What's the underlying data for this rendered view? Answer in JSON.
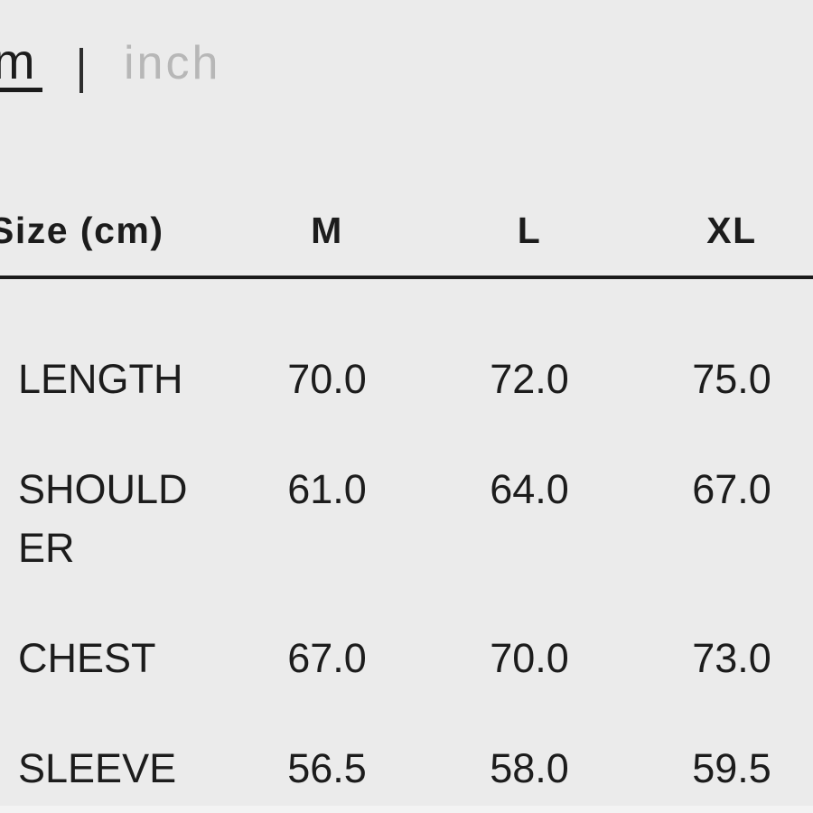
{
  "unit_toggle": {
    "cm_label": "cm",
    "inch_label": "inch",
    "active_unit": "cm"
  },
  "table": {
    "header": [
      "Size (cm)",
      "M",
      "L",
      "XL"
    ],
    "rows": [
      {
        "label": "LENGTH",
        "values": [
          "70.0",
          "72.0",
          "75.0"
        ]
      },
      {
        "label": "SHOULDER",
        "values": [
          "61.0",
          "64.0",
          "67.0"
        ]
      },
      {
        "label": "CHEST",
        "values": [
          "67.0",
          "70.0",
          "73.0"
        ]
      },
      {
        "label": "SLEEVE",
        "values": [
          "56.5",
          "58.0",
          "59.5"
        ]
      }
    ]
  },
  "colors": {
    "background": "#ebebeb",
    "text": "#1c1c1c",
    "inactive": "#b7b7b7",
    "rule": "#1a1a1a"
  }
}
